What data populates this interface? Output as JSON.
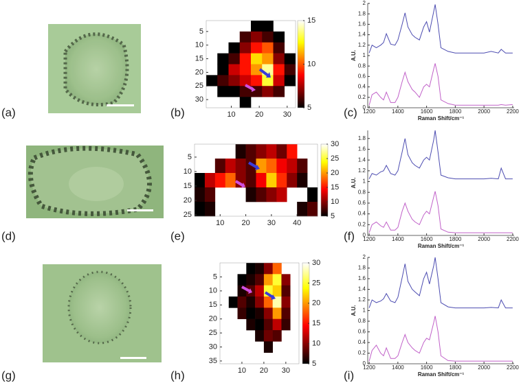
{
  "panel_labels": [
    "(a)",
    "(b)",
    "(c)",
    "(d)",
    "(e)",
    "(f)",
    "(g)",
    "(h)",
    "(i)"
  ],
  "chart_data": [
    {
      "type": "heatmap",
      "colormap": "hot",
      "x": [
        3,
        7,
        11,
        15,
        19,
        23,
        27,
        31
      ],
      "y": [
        3,
        7,
        11,
        15,
        19,
        23,
        27,
        31
      ],
      "z": [
        [
          null,
          null,
          null,
          null,
          5,
          5,
          null,
          null
        ],
        [
          null,
          null,
          null,
          6,
          7,
          6,
          5,
          null
        ],
        [
          null,
          null,
          5,
          7,
          9,
          10,
          6,
          null
        ],
        [
          null,
          5,
          6,
          9,
          12,
          11,
          7,
          5
        ],
        [
          null,
          5,
          8,
          9,
          11,
          14,
          9,
          6
        ],
        [
          5,
          6,
          7,
          8,
          9,
          13,
          8,
          5
        ],
        [
          null,
          5,
          5,
          6,
          6,
          7,
          6,
          null
        ],
        [
          null,
          null,
          null,
          5,
          null,
          null,
          null,
          null
        ]
      ],
      "xlim": [
        1,
        33
      ],
      "ylim": [
        33,
        1
      ],
      "xticks": [
        10,
        20,
        30
      ],
      "yticks": [
        5,
        10,
        15,
        20,
        25,
        30
      ],
      "zlim": [
        5,
        15
      ],
      "zticks": [
        5,
        10,
        15
      ]
    },
    {
      "type": "line",
      "xlabel": "Raman Shift/cm⁻¹",
      "ylabel": "A.U.",
      "x": [
        1200,
        1220,
        1250,
        1280,
        1300,
        1320,
        1350,
        1380,
        1400,
        1430,
        1450,
        1470,
        1500,
        1520,
        1550,
        1580,
        1600,
        1620,
        1650,
        1660,
        1680,
        1700,
        1750,
        1800,
        1900,
        2000,
        2050,
        2100,
        2120,
        2150,
        2200
      ],
      "series": [
        {
          "color": "#4b4bb0",
          "values": [
            1.05,
            1.2,
            1.15,
            1.2,
            1.25,
            1.42,
            1.22,
            1.2,
            1.3,
            1.6,
            1.82,
            1.55,
            1.4,
            1.35,
            1.3,
            1.55,
            1.65,
            1.45,
            1.85,
            1.98,
            1.6,
            1.15,
            1.08,
            1.05,
            1.05,
            1.05,
            1.08,
            1.05,
            1.12,
            1.05,
            1.05
          ]
        },
        {
          "color": "#c060c8",
          "values": [
            0.05,
            0.25,
            0.3,
            0.2,
            0.15,
            0.3,
            0.1,
            0.1,
            0.2,
            0.5,
            0.68,
            0.5,
            0.35,
            0.3,
            0.2,
            0.4,
            0.45,
            0.4,
            0.75,
            0.85,
            0.6,
            0.15,
            0.08,
            0.05,
            0.05,
            0.05,
            0.05,
            0.05,
            0.06,
            0.05,
            0.06
          ]
        }
      ],
      "xlim": [
        1190,
        2210
      ],
      "ylim": [
        0,
        2
      ],
      "xticks": [
        1200,
        1400,
        1600,
        1800,
        2000,
        2200
      ],
      "yticks": [
        0,
        0.2,
        0.4,
        0.6,
        0.8,
        1,
        1.2,
        1.4,
        1.6,
        1.8,
        2
      ]
    },
    {
      "type": "heatmap",
      "colormap": "hot",
      "x": [
        2,
        6,
        10,
        14,
        18,
        22,
        26,
        30,
        34,
        38,
        42,
        46
      ],
      "y": [
        3,
        8,
        13,
        18,
        23
      ],
      "z": [
        [
          null,
          null,
          null,
          null,
          6,
          8,
          10,
          12,
          9,
          15,
          null,
          null
        ],
        [
          null,
          null,
          8,
          12,
          10,
          8,
          20,
          18,
          14,
          12,
          8,
          null
        ],
        [
          5,
          12,
          15,
          18,
          10,
          8,
          14,
          22,
          16,
          10,
          6,
          null
        ],
        [
          6,
          8,
          null,
          null,
          null,
          6,
          8,
          10,
          12,
          null,
          null,
          5
        ],
        [
          5,
          6,
          null,
          null,
          null,
          null,
          null,
          null,
          null,
          null,
          6,
          8
        ]
      ],
      "xlim": [
        0,
        48
      ],
      "ylim": [
        25.5,
        0.5
      ],
      "xticks": [
        10,
        20,
        30,
        40
      ],
      "yticks": [
        5,
        10,
        15,
        20,
        25
      ],
      "zlim": [
        5,
        30
      ],
      "zticks": [
        5,
        10,
        15,
        20,
        25,
        30
      ]
    },
    {
      "type": "line",
      "xlabel": "Raman Shift/cm⁻¹",
      "ylabel": "A.U.",
      "x": [
        1200,
        1220,
        1250,
        1280,
        1300,
        1320,
        1350,
        1380,
        1400,
        1430,
        1450,
        1470,
        1500,
        1520,
        1550,
        1580,
        1600,
        1620,
        1650,
        1660,
        1680,
        1700,
        1750,
        1800,
        1900,
        2000,
        2050,
        2100,
        2120,
        2150,
        2200
      ],
      "series": [
        {
          "color": "#4b4bb0",
          "values": [
            1.05,
            1.15,
            1.12,
            1.18,
            1.2,
            1.3,
            1.15,
            1.12,
            1.2,
            1.55,
            1.8,
            1.5,
            1.35,
            1.3,
            1.25,
            1.4,
            1.45,
            1.4,
            1.78,
            1.95,
            1.55,
            1.12,
            1.07,
            1.05,
            1.05,
            1.05,
            1.06,
            1.05,
            1.25,
            1.05,
            1.05
          ]
        },
        {
          "color": "#c060c8",
          "values": [
            0.05,
            0.2,
            0.25,
            0.18,
            0.15,
            0.25,
            0.1,
            0.1,
            0.15,
            0.45,
            0.6,
            0.45,
            0.3,
            0.25,
            0.2,
            0.38,
            0.45,
            0.4,
            0.72,
            0.82,
            0.55,
            0.12,
            0.06,
            0.05,
            0.05,
            0.05,
            0.05,
            0.05,
            0.05,
            0.05,
            0.05
          ]
        }
      ],
      "xlim": [
        1190,
        2210
      ],
      "ylim": [
        0,
        1.95
      ],
      "xticks": [
        1200,
        1400,
        1600,
        1800,
        2000,
        2200
      ],
      "yticks": [
        0,
        0.2,
        0.4,
        0.6,
        0.8,
        1,
        1.2,
        1.4,
        1.6,
        1.8
      ]
    },
    {
      "type": "heatmap",
      "colormap": "hot",
      "x": [
        2,
        6,
        10,
        14,
        18,
        22,
        26,
        30,
        34
      ],
      "y": [
        2,
        6,
        10,
        14,
        18,
        22,
        26,
        30,
        34
      ],
      "z": [
        [
          null,
          null,
          null,
          5,
          6,
          10,
          18,
          null,
          null
        ],
        [
          null,
          null,
          5,
          6,
          8,
          20,
          25,
          10,
          null
        ],
        [
          null,
          null,
          6,
          8,
          12,
          25,
          22,
          8,
          null
        ],
        [
          null,
          5,
          8,
          6,
          10,
          18,
          28,
          10,
          null
        ],
        [
          null,
          null,
          7,
          5,
          6,
          10,
          20,
          8,
          null
        ],
        [
          null,
          null,
          null,
          6,
          5,
          8,
          12,
          7,
          null
        ],
        [
          null,
          null,
          null,
          null,
          6,
          9,
          8,
          null,
          null
        ],
        [
          null,
          null,
          null,
          null,
          null,
          6,
          null,
          null,
          null
        ],
        [
          null,
          null,
          null,
          null,
          null,
          null,
          null,
          null,
          null
        ]
      ],
      "xlim": [
        0,
        36
      ],
      "ylim": [
        36,
        0
      ],
      "xticks": [
        10,
        20,
        30
      ],
      "yticks": [
        5,
        10,
        15,
        20,
        25,
        30,
        35
      ],
      "zlim": [
        5,
        30
      ],
      "zticks": [
        5,
        10,
        15,
        20,
        25,
        30
      ]
    },
    {
      "type": "line",
      "xlabel": "Raman Shift/cm⁻¹",
      "ylabel": "A.U.",
      "x": [
        1200,
        1220,
        1250,
        1280,
        1300,
        1320,
        1350,
        1380,
        1400,
        1430,
        1450,
        1470,
        1500,
        1520,
        1550,
        1580,
        1600,
        1620,
        1650,
        1660,
        1680,
        1700,
        1750,
        1800,
        1900,
        2000,
        2050,
        2100,
        2120,
        2150,
        2200
      ],
      "series": [
        {
          "color": "#4b4bb0",
          "values": [
            1.05,
            1.2,
            1.15,
            1.18,
            1.22,
            1.32,
            1.18,
            1.15,
            1.25,
            1.62,
            1.88,
            1.55,
            1.4,
            1.35,
            1.28,
            1.6,
            1.72,
            1.5,
            1.85,
            2.0,
            1.6,
            1.15,
            1.07,
            1.05,
            1.05,
            1.05,
            1.06,
            1.05,
            1.2,
            1.05,
            1.05
          ]
        },
        {
          "color": "#c060c8",
          "values": [
            0.05,
            0.25,
            0.35,
            0.2,
            0.15,
            0.3,
            0.1,
            0.1,
            0.15,
            0.4,
            0.55,
            0.4,
            0.3,
            0.25,
            0.2,
            0.4,
            0.48,
            0.45,
            0.78,
            0.9,
            0.6,
            0.15,
            0.06,
            0.05,
            0.05,
            0.05,
            0.05,
            0.05,
            0.05,
            0.05,
            0.05
          ]
        }
      ],
      "xlim": [
        1190,
        2210
      ],
      "ylim": [
        0,
        2
      ],
      "xticks": [
        1200,
        1400,
        1600,
        1800,
        2000,
        2200
      ],
      "yticks": [
        0,
        0.2,
        0.4,
        0.6,
        0.8,
        1,
        1.2,
        1.4,
        1.6,
        1.8,
        2
      ]
    }
  ]
}
